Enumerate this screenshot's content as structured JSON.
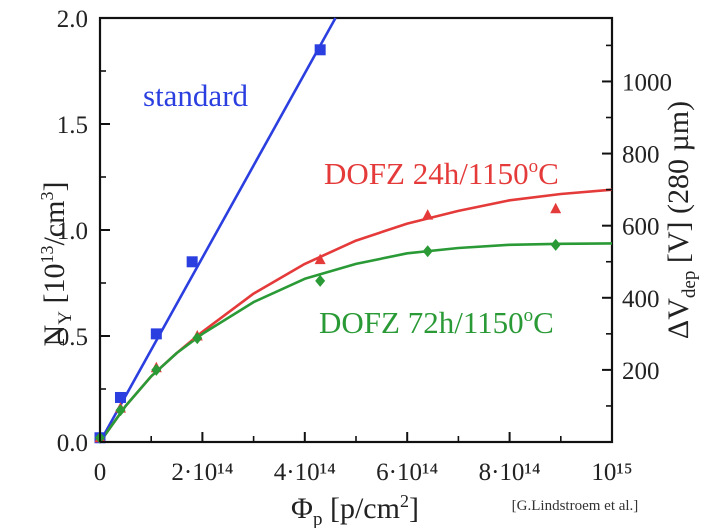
{
  "chart_data": {
    "type": "scatter",
    "x_axis": {
      "label": "Φp [p/cm²]",
      "min": 0,
      "max": 1000000000000000.0,
      "ticks": [
        {
          "value": 0,
          "label": "0"
        },
        {
          "value": 200000000000000.0,
          "label": "2·10¹⁴"
        },
        {
          "value": 400000000000000.0,
          "label": "4·10¹⁴"
        },
        {
          "value": 600000000000000.0,
          "label": "6·10¹⁴"
        },
        {
          "value": 800000000000000.0,
          "label": "8·10¹⁴"
        },
        {
          "value": 1000000000000000.0,
          "label": "10¹⁵"
        }
      ]
    },
    "y_axis_left": {
      "label": "NY [10¹³/cm³]",
      "min": 0,
      "max": 2.0,
      "ticks": [
        "0.0",
        "0.5",
        "1.0",
        "1.5",
        "2.0"
      ]
    },
    "y_axis_right": {
      "label": "ΔVdep [V] (280 µm)",
      "ticks": [
        "200",
        "400",
        "600",
        "800",
        "1000"
      ],
      "volts_per_unit_left": 588
    },
    "series": [
      {
        "name": "standard",
        "color": "#2b3fe0",
        "marker": "square",
        "points": [
          [
            0,
            0.02
          ],
          [
            40000000000000.0,
            0.21
          ],
          [
            110000000000000.0,
            0.51
          ],
          [
            180000000000000.0,
            0.85
          ],
          [
            430000000000000.0,
            1.85
          ]
        ],
        "fit": [
          [
            0,
            0
          ],
          [
            460000000000000.0,
            2.0
          ]
        ]
      },
      {
        "name": "DOFZ 24h/1150°C",
        "color": "#e53a3a",
        "marker": "triangle",
        "points": [
          [
            0,
            0.02
          ],
          [
            40000000000000.0,
            0.16
          ],
          [
            110000000000000.0,
            0.35
          ],
          [
            190000000000000.0,
            0.5
          ],
          [
            430000000000000.0,
            0.86
          ],
          [
            640000000000000.0,
            1.07
          ],
          [
            890000000000000.0,
            1.1
          ]
        ],
        "fit": [
          [
            0,
            0
          ],
          [
            50000000000000.0,
            0.17
          ],
          [
            100000000000000.0,
            0.31
          ],
          [
            150000000000000.0,
            0.42
          ],
          [
            200000000000000.0,
            0.52
          ],
          [
            300000000000000.0,
            0.7
          ],
          [
            400000000000000.0,
            0.84
          ],
          [
            500000000000000.0,
            0.95
          ],
          [
            600000000000000.0,
            1.03
          ],
          [
            700000000000000.0,
            1.09
          ],
          [
            800000000000000.0,
            1.14
          ],
          [
            900000000000000.0,
            1.17
          ],
          [
            1000000000000000.0,
            1.19
          ]
        ]
      },
      {
        "name": "DOFZ 72h/1150°C",
        "color": "#2a9a36",
        "marker": "diamond",
        "points": [
          [
            0,
            0.02
          ],
          [
            40000000000000.0,
            0.15
          ],
          [
            110000000000000.0,
            0.34
          ],
          [
            190000000000000.0,
            0.49
          ],
          [
            430000000000000.0,
            0.76
          ],
          [
            640000000000000.0,
            0.9
          ],
          [
            890000000000000.0,
            0.93
          ]
        ],
        "fit": [
          [
            0,
            0
          ],
          [
            50000000000000.0,
            0.17
          ],
          [
            100000000000000.0,
            0.31
          ],
          [
            150000000000000.0,
            0.42
          ],
          [
            200000000000000.0,
            0.51
          ],
          [
            300000000000000.0,
            0.66
          ],
          [
            400000000000000.0,
            0.77
          ],
          [
            500000000000000.0,
            0.84
          ],
          [
            600000000000000.0,
            0.89
          ],
          [
            700000000000000.0,
            0.915
          ],
          [
            800000000000000.0,
            0.93
          ],
          [
            900000000000000.0,
            0.935
          ],
          [
            1000000000000000.0,
            0.937
          ]
        ]
      }
    ],
    "annotations": {
      "standard": "standard",
      "dofz24": "DOFZ 24h/1150",
      "dofz72": "DOFZ 72h/1150",
      "degree_unit": "C",
      "credit": "[G.Lindstroem et al.]"
    },
    "grid": false
  }
}
